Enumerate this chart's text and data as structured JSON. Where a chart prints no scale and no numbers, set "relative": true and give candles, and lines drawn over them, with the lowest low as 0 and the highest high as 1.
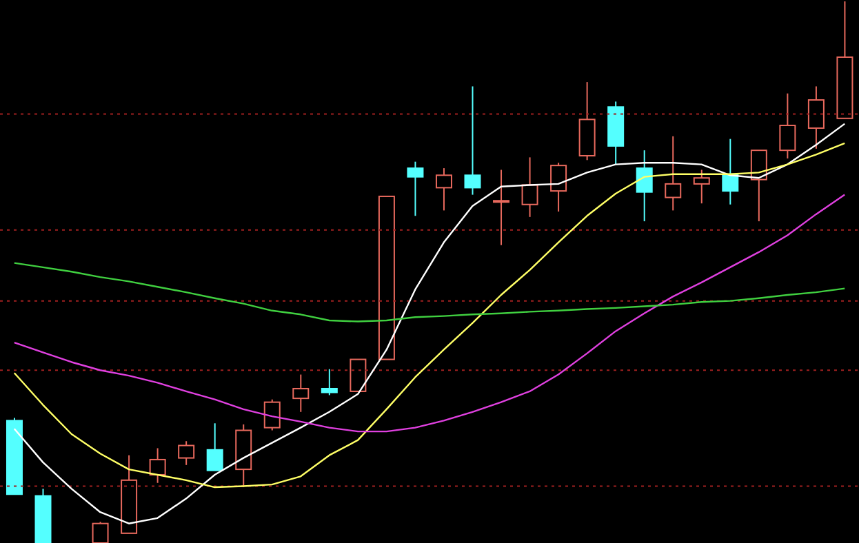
{
  "chart_data": {
    "type": "candlestick",
    "relative": true,
    "categories": [
      null,
      null,
      null,
      null,
      null,
      null,
      null,
      null,
      null,
      null,
      null,
      null,
      null,
      null,
      null,
      null,
      null,
      null,
      null,
      null,
      null,
      null,
      null,
      null,
      null,
      null,
      null,
      null,
      null,
      null
    ],
    "ohlc": [
      [
        0.226,
        0.231,
        0.09,
        0.09
      ],
      [
        0.087,
        0.1,
        0,
        0
      ],
      null,
      [
        0,
        0.039,
        0,
        0.036
      ],
      [
        0.018,
        0.162,
        0.018,
        0.116
      ],
      [
        0.126,
        0.175,
        0.111,
        0.154
      ],
      [
        0.157,
        0.188,
        0.144,
        0.18
      ],
      [
        0.172,
        0.221,
        0.134,
        0.134
      ],
      [
        0.136,
        0.219,
        0.103,
        0.208
      ],
      [
        0.213,
        0.265,
        0.208,
        0.26
      ],
      [
        0.267,
        0.311,
        0.242,
        0.285
      ],
      [
        0.285,
        0.321,
        0.273,
        0.278
      ],
      [
        0.28,
        0.339,
        0.28,
        0.339
      ],
      [
        0.339,
        0.64,
        0.339,
        0.64
      ],
      [
        0.692,
        0.704,
        0.604,
        0.676
      ],
      [
        0.656,
        0.692,
        0.614,
        0.679
      ],
      [
        0.679,
        0.843,
        0.643,
        0.656
      ],
      [
        0.63,
        0.689,
        0.55,
        0.632
      ],
      [
        0.625,
        0.712,
        0.602,
        0.661
      ],
      [
        0.65,
        0.702,
        0.612,
        0.697
      ],
      [
        0.715,
        0.851,
        0.707,
        0.782
      ],
      [
        0.805,
        0.815,
        0.699,
        0.733
      ],
      [
        0.692,
        0.725,
        0.594,
        0.648
      ],
      [
        0.638,
        0.751,
        0.614,
        0.663
      ],
      [
        0.663,
        0.689,
        0.627,
        0.674
      ],
      [
        0.681,
        0.746,
        0.625,
        0.65
      ],
      [
        0.671,
        0.725,
        0.594,
        0.725
      ],
      [
        0.725,
        0.83,
        0.71,
        0.771
      ],
      [
        0.766,
        0.843,
        0.728,
        0.818
      ],
      [
        0.784,
        1,
        0.784,
        0.897
      ]
    ],
    "colors": [
      "#54ffff",
      "#54ffff",
      null,
      "#e8695d",
      "#e8695d",
      "#e8695d",
      "#e8695d",
      "#54ffff",
      "#e8695d",
      "#e8695d",
      "#e8695d",
      "#54ffff",
      "#e8695d",
      "#e8695d",
      "#54ffff",
      "#e8695d",
      "#54ffff",
      "#e8695d",
      "#e8695d",
      "#e8695d",
      "#e8695d",
      "#54ffff",
      "#54ffff",
      "#e8695d",
      "#e8695d",
      "#54ffff",
      "#e8695d",
      "#e8695d",
      "#e8695d",
      "#e8695d"
    ],
    "series": [
      {
        "type": "line",
        "color": "#ffffff",
        "values": [
          0.211,
          0.149,
          0.1,
          0.057,
          0.036,
          0.046,
          0.082,
          0.126,
          0.157,
          0.185,
          0.213,
          0.242,
          0.275,
          0.357,
          0.468,
          0.555,
          0.622,
          0.658,
          0.661,
          0.663,
          0.684,
          0.699,
          0.702,
          0.702,
          0.699,
          0.679,
          0.674,
          0.699,
          0.735,
          0.774
        ]
      },
      {
        "type": "line",
        "color": "#ffff66",
        "values": [
          0.314,
          0.255,
          0.201,
          0.165,
          0.136,
          0.126,
          0.116,
          0.103,
          0.105,
          0.108,
          0.123,
          0.162,
          0.19,
          0.247,
          0.306,
          0.357,
          0.406,
          0.458,
          0.504,
          0.555,
          0.604,
          0.645,
          0.676,
          0.681,
          0.681,
          0.681,
          0.684,
          0.699,
          0.717,
          0.738
        ]
      },
      {
        "type": "line",
        "color": "#e040e0",
        "values": [
          0.37,
          0.352,
          0.334,
          0.319,
          0.309,
          0.296,
          0.28,
          0.265,
          0.247,
          0.234,
          0.224,
          0.213,
          0.206,
          0.206,
          0.213,
          0.226,
          0.242,
          0.26,
          0.28,
          0.311,
          0.35,
          0.391,
          0.424,
          0.455,
          0.481,
          0.509,
          0.537,
          0.568,
          0.607,
          0.643
        ]
      },
      {
        "type": "line",
        "color": "#40d040",
        "values": [
          0.517,
          0.509,
          0.501,
          0.491,
          0.483,
          0.473,
          0.463,
          0.452,
          0.442,
          0.429,
          0.422,
          0.411,
          0.409,
          0.411,
          0.417,
          0.419,
          0.422,
          0.424,
          0.427,
          0.429,
          0.432,
          0.434,
          0.437,
          0.44,
          0.445,
          0.447,
          0.452,
          0.458,
          0.463,
          0.47
        ]
      }
    ],
    "ref_lines": [
      {
        "axis": "y",
        "value": 0.792,
        "color": "#a02020",
        "line_style": "dotted"
      },
      {
        "axis": "y",
        "value": 0.578,
        "color": "#a02020",
        "line_style": "dotted"
      },
      {
        "axis": "y",
        "value": 0.447,
        "color": "#a02020",
        "line_style": "dotted"
      },
      {
        "axis": "y",
        "value": 0.319,
        "color": "#a02020",
        "line_style": "dotted"
      },
      {
        "axis": "y",
        "value": 0.105,
        "color": "#a02020",
        "line_style": "dotted"
      }
    ]
  }
}
